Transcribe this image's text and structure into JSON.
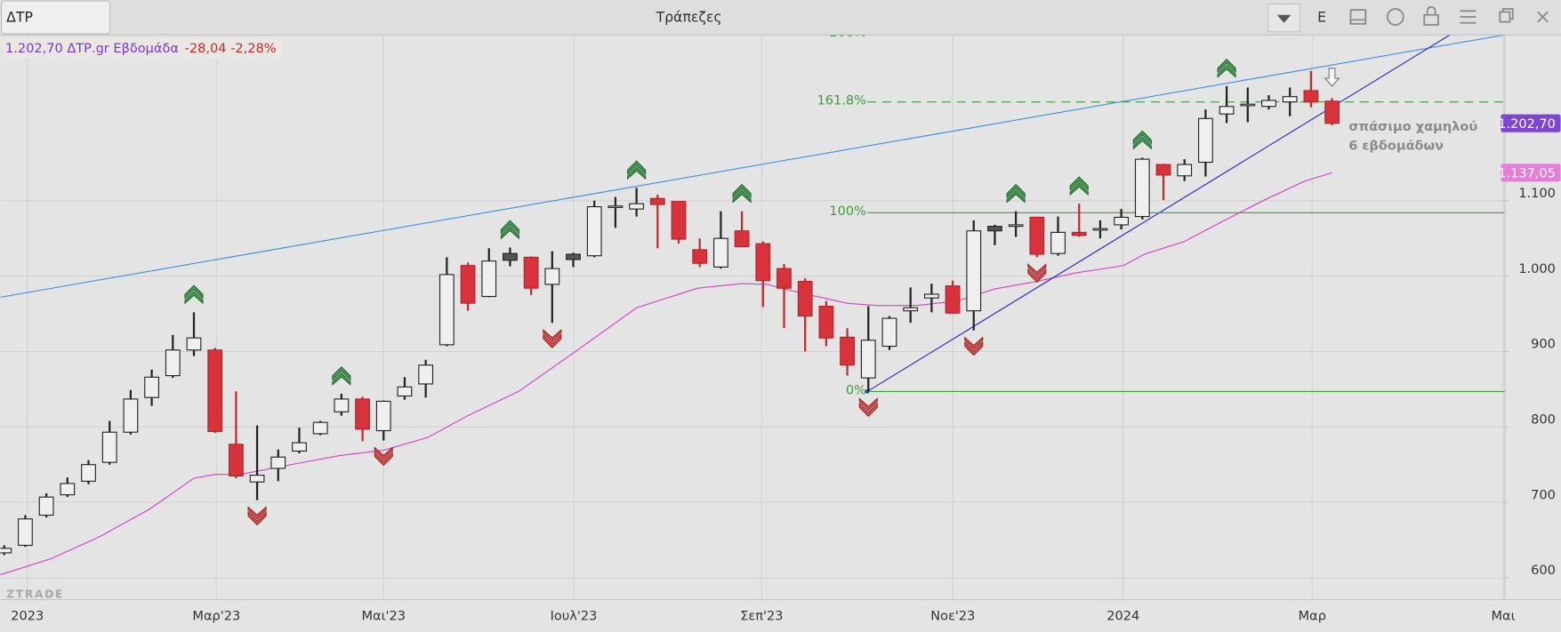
{
  "header": {
    "symbol": "ΔΤΡ",
    "title": "Τράπεζες",
    "mode": "E",
    "info_price": "1.202,70 ΔΤΡ.gr Εβδομάδα",
    "info_change": "-28,04 -2,28%",
    "watermark": "ZTRADE"
  },
  "chart_data": {
    "type": "candlestick",
    "x": [
      -1,
      0,
      1,
      2,
      3,
      4,
      5,
      6,
      7,
      8,
      9,
      10,
      11,
      12,
      13,
      14,
      15,
      16,
      17,
      18,
      19,
      20,
      21,
      22,
      23,
      24,
      25,
      26,
      27,
      28,
      29,
      30,
      31,
      32,
      33,
      34,
      35,
      36,
      37,
      38,
      39,
      40,
      41,
      42,
      43,
      44,
      45,
      46,
      47,
      48,
      49,
      50,
      51,
      52,
      53,
      54,
      55,
      56,
      57,
      58,
      59,
      60,
      61,
      62
    ],
    "open": [
      633,
      643,
      683,
      710,
      728,
      753,
      793,
      839,
      868,
      902,
      902,
      777,
      727,
      745,
      768,
      791,
      820,
      837,
      795,
      841,
      857,
      909,
      1014,
      973,
      1030,
      1025,
      989,
      1029,
      1027,
      1092,
      1089,
      1103,
      1099,
      1035,
      1012,
      1060,
      1043,
      1010,
      993,
      960,
      919,
      865,
      907,
      954,
      971,
      987,
      954,
      1066,
      1067,
      1078,
      1030,
      1058,
      1062,
      1068,
      1079,
      1148,
      1133,
      1151,
      1215,
      1227,
      1225,
      1231,
      1246,
      1232
    ],
    "high": [
      643,
      683,
      712,
      733,
      756,
      808,
      849,
      876,
      922,
      952,
      905,
      847,
      802,
      770,
      799,
      808,
      844,
      840,
      835,
      866,
      889,
      1025,
      1018,
      1037,
      1038,
      1026,
      1033,
      1031,
      1100,
      1105,
      1117,
      1108,
      1099,
      1050,
      1086,
      1086,
      1046,
      1016,
      997,
      967,
      931,
      960,
      947,
      985,
      990,
      994,
      1074,
      1068,
      1086,
      1079,
      1079,
      1096,
      1074,
      1089,
      1157,
      1149,
      1155,
      1221,
      1252,
      1250,
      1240,
      1250,
      1272,
      1236
    ],
    "low": [
      630,
      641,
      680,
      707,
      724,
      750,
      790,
      828,
      865,
      894,
      792,
      732,
      703,
      728,
      765,
      789,
      815,
      781,
      782,
      836,
      839,
      907,
      954,
      972,
      1013,
      975,
      938,
      1012,
      1025,
      1064,
      1079,
      1037,
      1043,
      1012,
      1010,
      1038,
      959,
      931,
      900,
      907,
      868,
      847,
      902,
      938,
      952,
      950,
      928,
      1041,
      1052,
      1025,
      1027,
      1052,
      1050,
      1062,
      1075,
      1101,
      1126,
      1132,
      1203,
      1204,
      1221,
      1212,
      1224,
      1200
    ],
    "close": [
      639,
      678,
      707,
      725,
      750,
      793,
      837,
      866,
      902,
      918,
      794,
      735,
      736,
      760,
      779,
      806,
      837,
      797,
      834,
      853,
      882,
      1002,
      964,
      1020,
      1021,
      984,
      1010,
      1022,
      1092,
      1093,
      1096,
      1095,
      1049,
      1017,
      1050,
      1039,
      994,
      984,
      947,
      918,
      882,
      915,
      944,
      958,
      976,
      951,
      1060,
      1060,
      1068,
      1029,
      1058,
      1054,
      1063,
      1078,
      1155,
      1134,
      1148,
      1209,
      1225,
      1228,
      1233,
      1238,
      1231,
      1202.7
    ],
    "colors": {
      "up": "#efefef",
      "down": "#d8333b",
      "down_dark": "#555555",
      "edge": "#222222"
    },
    "xlim": [
      -1.18,
      70.2
    ],
    "xticks": [
      {
        "value": 0.1,
        "label": "2023"
      },
      {
        "value": 9.07,
        "label": "Μαρ'23"
      },
      {
        "value": 17.0,
        "label": "Μαι'23"
      },
      {
        "value": 26.02,
        "label": "Ιουλ'23"
      },
      {
        "value": 34.94,
        "label": "Σεπ'23"
      },
      {
        "value": 44.01,
        "label": "Νοε'23"
      },
      {
        "value": 52.09,
        "label": "2024"
      },
      {
        "value": 61.06,
        "label": "Μαρ"
      },
      {
        "value": 70.12,
        "label": "Μαι"
      }
    ],
    "ylim": [
      571,
      1320
    ],
    "yticks": [
      600,
      700,
      800,
      900,
      {
        "value": 1000,
        "label": "1.000"
      },
      {
        "value": 1100,
        "label": "1.100"
      }
    ],
    "grid": true,
    "ma": {
      "color": "#d43fc4",
      "x": [
        -1.18,
        1.2,
        3.5,
        5.9,
        8.0,
        9.0,
        10.2,
        13.0,
        14.9,
        17.0,
        19.1,
        21.0,
        23.4,
        26.0,
        29.0,
        31.9,
        34.0,
        35.2,
        36.6,
        39.0,
        40.4,
        42.3,
        44.2,
        46.0,
        48.0,
        49.8,
        52.1,
        53.1,
        55.0,
        56.9,
        58.8,
        60.7,
        62.0
      ],
      "values": [
        604,
        625,
        654,
        691,
        732,
        737,
        737,
        752,
        762,
        769,
        786,
        815,
        847,
        898,
        958,
        984,
        990,
        989,
        979,
        964,
        961,
        961,
        967,
        983,
        993,
        1004,
        1014,
        1029,
        1046,
        1074,
        1101,
        1126,
        1137.05
      ],
      "last": {
        "value": 1137.05,
        "label": "1.137,05"
      },
      "tag_color": "#e37fd9"
    },
    "last_price": {
      "value": 1202.7,
      "label": "1.202,70",
      "tag_color": "#7d45d2"
    },
    "trend_lines": [
      {
        "color": "#3d8fe3",
        "x": [
          -1.18,
          70.2
        ],
        "values": [
          972,
          1320
        ]
      },
      {
        "color": "#2626cc",
        "x": [
          39.95,
          67.6
        ],
        "values": [
          847,
          1320
        ]
      }
    ],
    "fib": {
      "color": "#3a9d3a",
      "x_start": 39.95,
      "prices": [
        847,
        1084,
        1231,
        1321
      ],
      "labels": [
        "0%",
        "100%",
        "161.8%",
        "200%"
      ],
      "dashed": [
        false,
        false,
        true,
        false
      ]
    },
    "signals_up": [
      8,
      15,
      23,
      29,
      34,
      47,
      50,
      53,
      57
    ],
    "signals_down": [
      11,
      17,
      25,
      40,
      45,
      48
    ],
    "break_signal": 62,
    "annotation": [
      "σπάσιμο χαμηλού",
      "6 εβδομάδων"
    ]
  }
}
